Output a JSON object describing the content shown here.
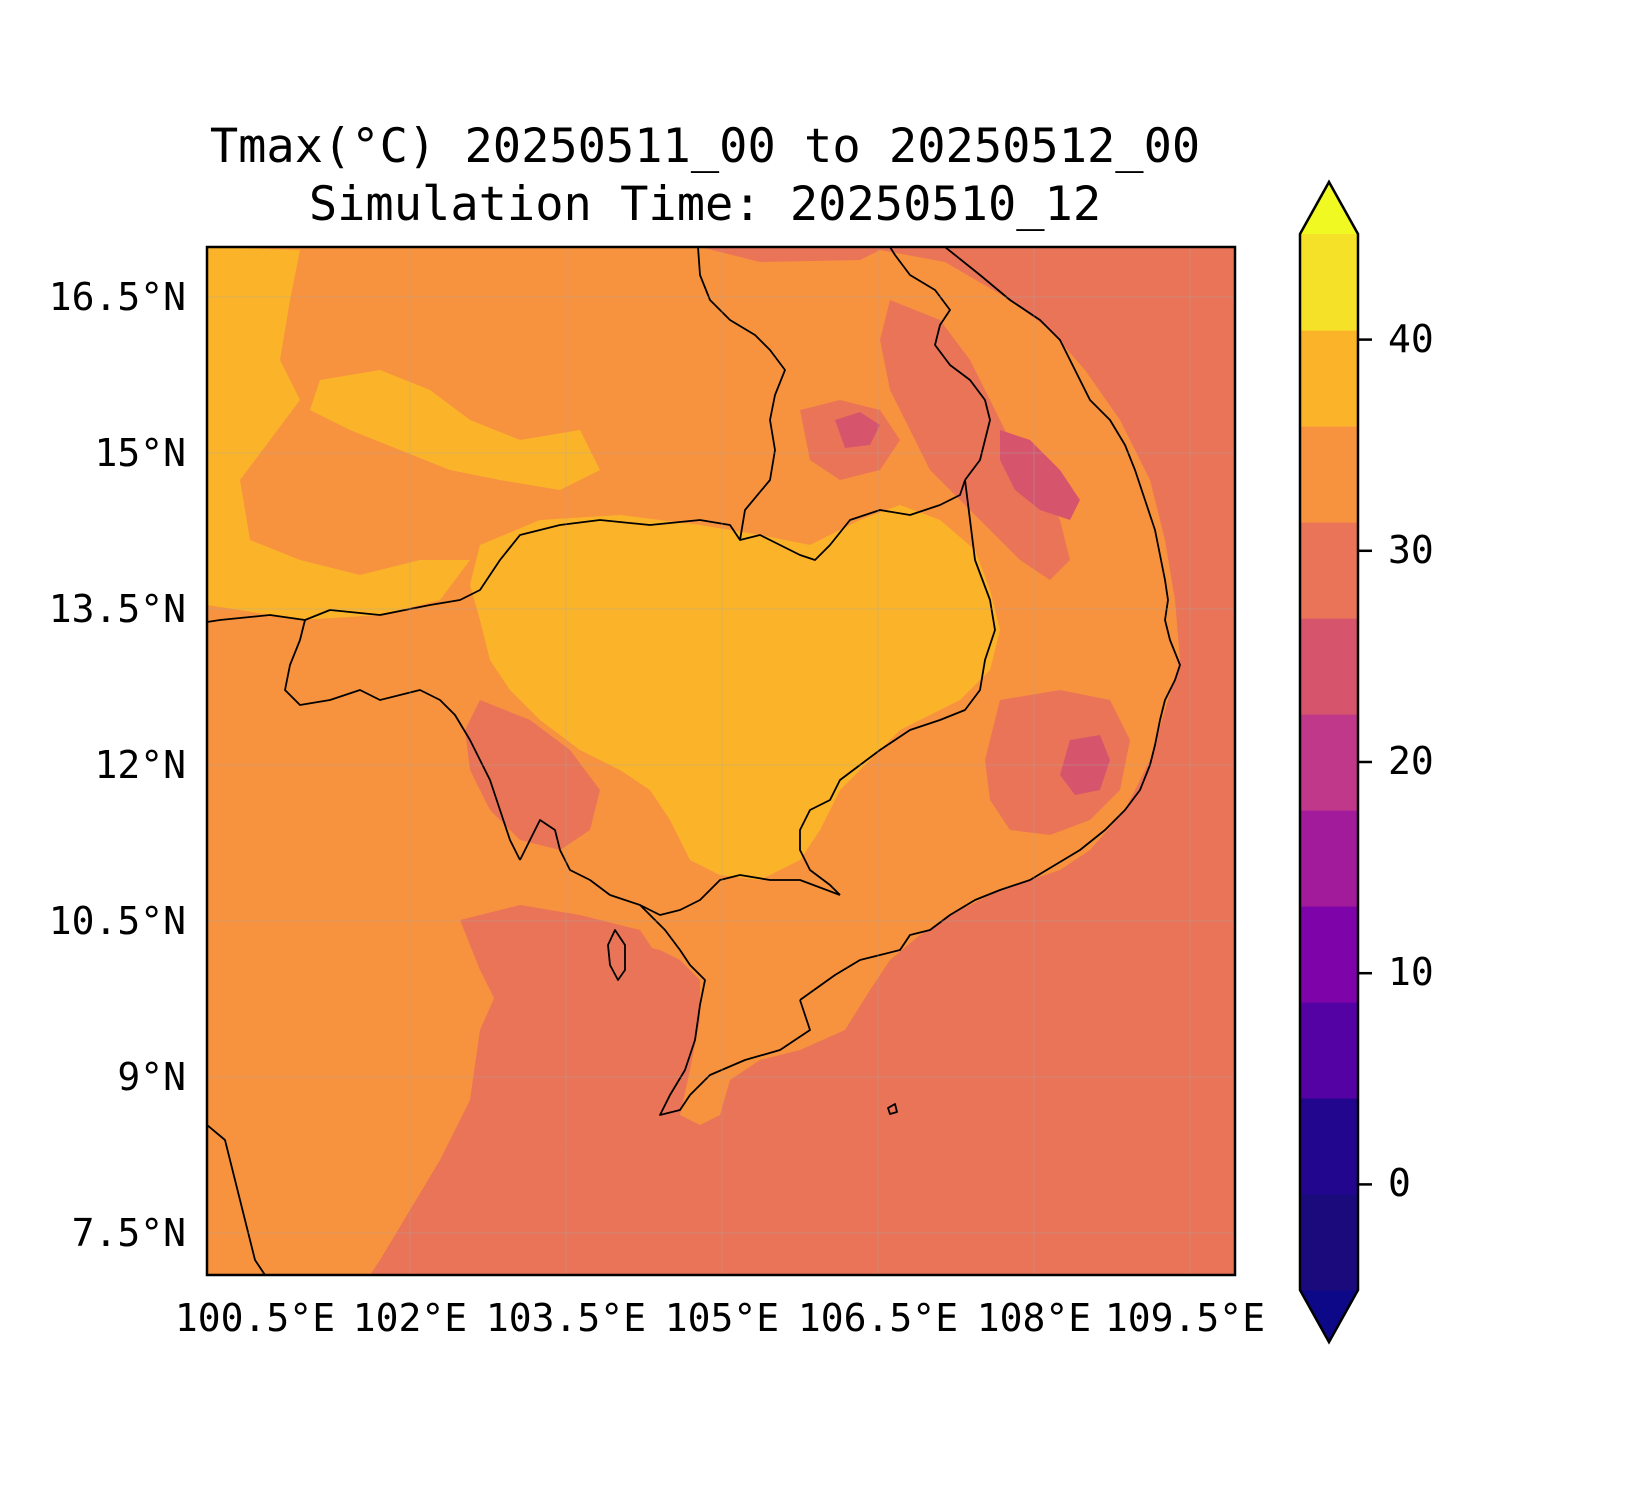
{
  "title": {
    "line1": "Tmax(°C) 20250511_00 to 20250512_00",
    "line2": "Simulation Time: 20250510_12"
  },
  "map": {
    "lat_ticks": [
      "16.5°N",
      "15°N",
      "13.5°N",
      "12°N",
      "10.5°N",
      "9°N",
      "7.5°N"
    ],
    "lon_ticks": [
      "100.5°E",
      "102°E",
      "103.5°E",
      "105°E",
      "106.5°E",
      "108°E",
      "109.5°E"
    ],
    "lon_range": [
      100.5,
      110.4
    ],
    "lat_range": [
      7.1,
      17.0
    ],
    "field_levels": {
      "sea": "25-30",
      "land": "30-35",
      "central_plain": "35-40"
    }
  },
  "colorbar": {
    "labels": [
      "0",
      "10",
      "20",
      "30",
      "40"
    ],
    "levels": [
      -5,
      0,
      5,
      10,
      15,
      20,
      25,
      30,
      35,
      40,
      45
    ],
    "colors": [
      "#1a0a7c",
      "#22068e",
      "#5402a3",
      "#7e03a8",
      "#a11b9b",
      "#c0388a",
      "#d6556d",
      "#ea7457",
      "#f7933e",
      "#fbb42a",
      "#f5e128"
    ],
    "extend_low_color": "#0d0887",
    "extend_high_color": "#f0f921"
  }
}
